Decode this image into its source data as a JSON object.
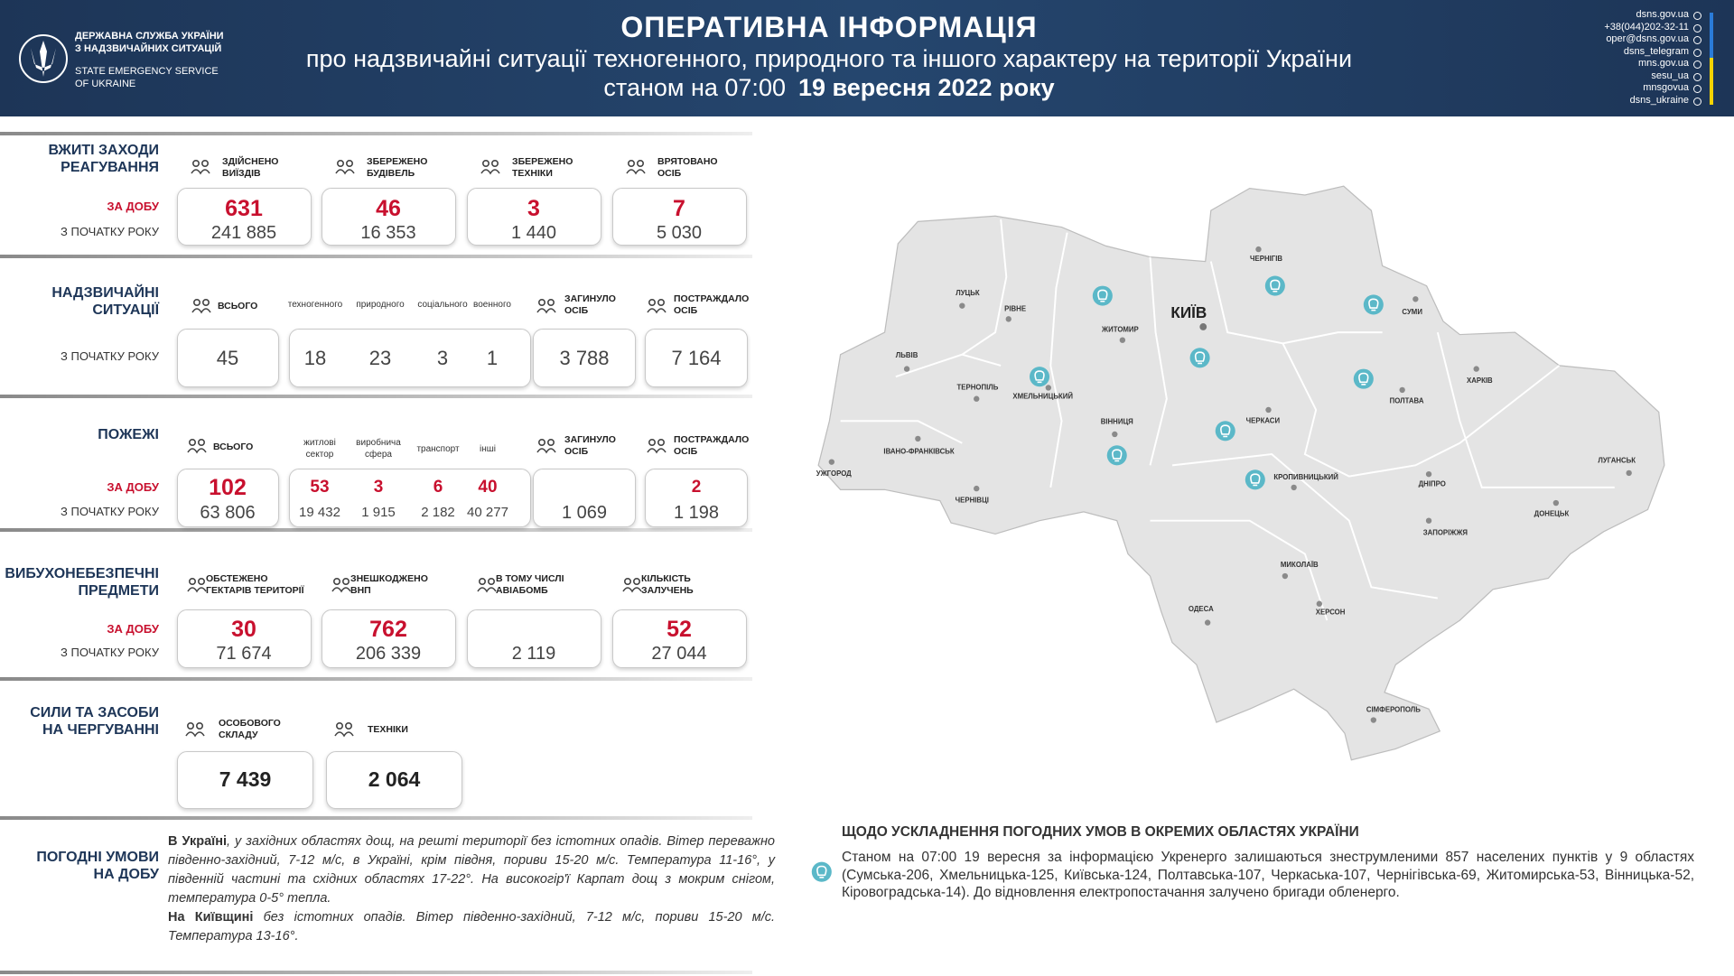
{
  "header": {
    "org_ua": "ДЕРЖАВНА СЛУЖБА УКРАЇНИ\nЗ НАДЗВИЧАЙНИХ СИТУАЦІЙ",
    "org_en": "STATE EMERGENCY SERVICE\nOF UKRAINE",
    "title": "ОПЕРАТИВНА  ІНФОРМАЦІЯ",
    "subtitle": "про надзвичайні ситуації техногенного, природного та іншого характеру на території України",
    "date_prefix": "станом на 07:00",
    "date": "19 вересня 2022 року",
    "contacts": [
      "dsns.gov.ua",
      "+38(044)202-32-11",
      "oper@dsns.gov.ua",
      "dsns_telegram",
      "mns.gov.ua",
      "sesu_ua",
      "mnsgovua",
      "dsns_ukraine"
    ]
  },
  "response": {
    "title": "ВЖИТІ ЗАХОДИ\nРЕАГУВАННЯ",
    "row_labels": [
      "ЗА ДОБУ",
      "З ПОЧАТКУ РОКУ"
    ],
    "columns": [
      {
        "header": "ЗДІЙСНЕНО\nВИЇЗДІВ",
        "day": "631",
        "year": "241 885"
      },
      {
        "header": "ЗБЕРЕЖЕНО\nБУДІВЕЛЬ",
        "day": "46",
        "year": "16 353"
      },
      {
        "header": "ЗБЕРЕЖЕНО\nТЕХНІКИ",
        "day": "3",
        "year": "1 440"
      },
      {
        "header": "ВРЯТОВАНО\nОСІБ",
        "day": "7",
        "year": "5 030"
      }
    ]
  },
  "emergencies": {
    "title": "НАДЗВИЧАЙНІ\nСИТУАЦІЇ",
    "row_label": "З ПОЧАТКУ РОКУ",
    "total_header": "ВСЬОГО",
    "total": "45",
    "types": [
      {
        "label": "техногенного",
        "value": "18"
      },
      {
        "label": "природного",
        "value": "23"
      },
      {
        "label": "соціального",
        "value": "3"
      },
      {
        "label": "военного",
        "value": "1"
      }
    ],
    "deaths_header": "ЗАГИНУЛО\nОСІБ",
    "deaths": "3 788",
    "injured_header": "ПОСТРАЖДАЛО\nОСІБ",
    "injured": "7 164"
  },
  "fires": {
    "title": "ПОЖЕЖІ",
    "row_labels": [
      "ЗА ДОБУ",
      "З ПОЧАТКУ РОКУ"
    ],
    "total_header": "ВСЬОГО",
    "total_day": "102",
    "total_year": "63 806",
    "types": [
      {
        "label": "житлові\nсектор",
        "day": "53",
        "year": "19 432"
      },
      {
        "label": "виробнича\nсфера",
        "day": "3",
        "year": "1 915"
      },
      {
        "label": "транспорт",
        "day": "6",
        "year": "2 182"
      },
      {
        "label": "інші",
        "day": "40",
        "year": "40 277"
      }
    ],
    "deaths_header": "ЗАГИНУЛО\nОСІБ",
    "deaths_year": "1 069",
    "injured_header": "ПОСТРАЖДАЛО\nОСІБ",
    "injured_day": "2",
    "injured_year": "1 198"
  },
  "explosives": {
    "title": "ВИБУХОНЕБЕЗПЕЧНІ\nПРЕДМЕТИ",
    "row_labels": [
      "ЗА ДОБУ",
      "З ПОЧАТКУ РОКУ"
    ],
    "columns": [
      {
        "header": "ОБСТЕЖЕНО\nГЕКТАРІВ ТЕРИТОРІЇ",
        "day": "30",
        "year": "71 674"
      },
      {
        "header": "ЗНЕШКОДЖЕНО\nВНП",
        "day": "762",
        "year": "206 339"
      },
      {
        "header": "В ТОМУ ЧИСЛІ\nАВІАБОМБ",
        "year": "2 119"
      },
      {
        "header": "КІЛЬКІСТЬ\nЗАЛУЧЕНЬ",
        "day": "52",
        "year": "27 044"
      }
    ]
  },
  "forces": {
    "title": "СИЛИ ТА ЗАСОБИ\nНА ЧЕРГУВАННІ",
    "columns": [
      {
        "header": "ОСОБОВОГО\nСКЛАДУ",
        "value": "7 439"
      },
      {
        "header": "ТЕХНІКИ",
        "value": "2 064"
      }
    ]
  },
  "weather": {
    "title": "ПОГОДНІ УМОВИ\nНА ДОБУ",
    "paragraphs": [
      {
        "lead": "В Україні",
        "text": ", у західних областях дощ, на решті території без істотних опадів. Вітер переважно південно-західний, 7-12 м/с, в Україні, крім півдня, пориви 15-20 м/с. Температура 11-16°, у південній частині та східних областях 17-22°. На високогір'ї Карпат дощ з мокрим снігом, температура 0-5° тепла."
      },
      {
        "lead": "На Київщині",
        "text": " без істотних опадів. Вітер південно-західний, 7-12 м/с, пориви 15-20 м/с. Температура 13-16°."
      }
    ]
  },
  "outage": {
    "title": "ЩОДО УСКЛАДНЕННЯ ПОГОДНИХ УМОВ В ОКРЕМИХ ОБЛАСТЯХ УКРАЇНИ",
    "text": "Станом на 07:00 19 вересня за інформацією Укренерго залишаються знеструмленими 857 населених пунктів у 9 областях (Сумська-206, Хмельницька-125, Київська-124, Полтавська-107, Черкаська-107, Чернігівська-69, Житомирська-53, Вінницька-52, Кіровоградська-14). До відновлення електропостачання залучено бригади обленерго."
  },
  "map": {
    "capital": "КИЇВ",
    "cities": [
      "ЛУЦЬК",
      "РІВНЕ",
      "ЖИТОМИР",
      "ЧЕРНІГІВ",
      "СУМИ",
      "ЛЬВІВ",
      "ТЕРНОПІЛЬ",
      "ХМЕЛЬНИЦЬКИЙ",
      "ВІННИЦЯ",
      "ЧЕРКАСИ",
      "ПОЛТАВА",
      "ХАРКІВ",
      "ІВАНО-ФРАНКІВСЬК",
      "УЖГОРОД",
      "ЧЕРНІВЦІ",
      "КРОПИВНИЦЬКИЙ",
      "ДНІПРО",
      "ЛУГАНСЬК",
      "ДОНЕЦЬК",
      "ЗАПОРІЖЖЯ",
      "МИКОЛАЇВ",
      "ОДЕСА",
      "ХЕРСОН",
      "СІМФЕРОПОЛЬ"
    ]
  }
}
